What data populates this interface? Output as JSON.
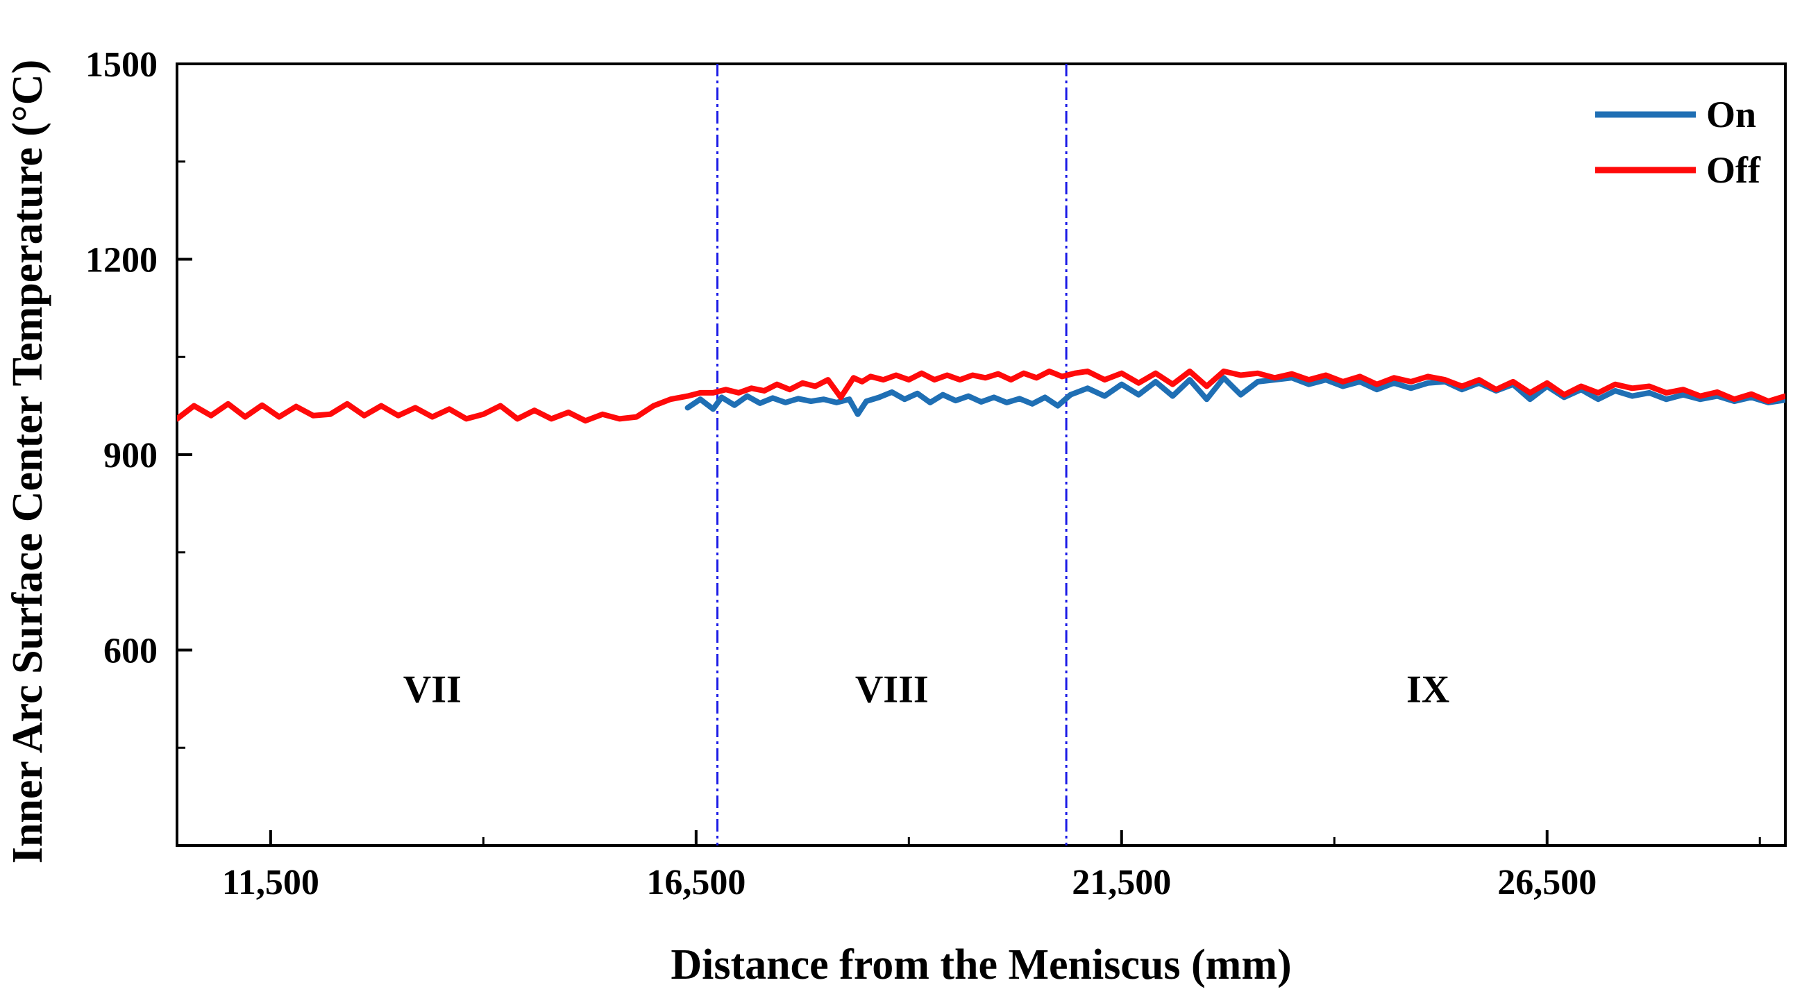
{
  "chart_data": {
    "type": "line",
    "xlabel": "Distance from the Meniscus (mm)",
    "ylabel": "Inner Arc Surface Center Temperature (°C)",
    "xlim": [
      10400,
      29300
    ],
    "ylim": [
      300,
      1500
    ],
    "x_ticks": [
      11500,
      16500,
      21500,
      26500
    ],
    "x_tick_labels": [
      "11,500",
      "16,500",
      "21,500",
      "26,500"
    ],
    "x_minor_ticks": [
      14000,
      19000,
      24000,
      29000
    ],
    "y_ticks": [
      600,
      900,
      1200,
      1500
    ],
    "y_tick_labels": [
      "600",
      "900",
      "1200",
      "1500"
    ],
    "y_minor_ticks": [
      450,
      750,
      1050,
      1350
    ],
    "grid": false,
    "legend_position": "top-right",
    "zone_dividers": [
      16750,
      20850
    ],
    "zones": [
      {
        "label": "VII",
        "x": 13400
      },
      {
        "label": "VIII",
        "x": 18800
      },
      {
        "label": "IX",
        "x": 25100
      }
    ],
    "series": [
      {
        "name": "On",
        "color": "#1f6fb4",
        "x": [
          16400,
          16550,
          16700,
          16800,
          16950,
          17100,
          17250,
          17400,
          17550,
          17700,
          17850,
          18000,
          18150,
          18300,
          18400,
          18500,
          18650,
          18800,
          18950,
          19100,
          19250,
          19400,
          19550,
          19700,
          19850,
          20000,
          20150,
          20300,
          20450,
          20600,
          20750,
          20900,
          21100,
          21300,
          21500,
          21700,
          21900,
          22100,
          22300,
          22500,
          22700,
          22900,
          23100,
          23300,
          23500,
          23700,
          23900,
          24100,
          24300,
          24500,
          24700,
          24900,
          25100,
          25300,
          25500,
          25700,
          25900,
          26100,
          26300,
          26500,
          26700,
          26900,
          27100,
          27300,
          27500,
          27700,
          27900,
          28100,
          28300,
          28500,
          28700,
          28900,
          29100,
          29300
        ],
        "y": [
          972,
          985,
          970,
          988,
          976,
          990,
          979,
          987,
          980,
          986,
          982,
          985,
          980,
          985,
          962,
          982,
          988,
          996,
          985,
          994,
          980,
          992,
          983,
          990,
          981,
          988,
          980,
          986,
          978,
          988,
          975,
          992,
          1002,
          990,
          1008,
          992,
          1012,
          990,
          1015,
          985,
          1018,
          992,
          1012,
          1015,
          1018,
          1008,
          1015,
          1005,
          1012,
          1000,
          1010,
          1002,
          1010,
          1012,
          1000,
          1010,
          998,
          1008,
          985,
          1005,
          988,
          1000,
          985,
          998,
          990,
          995,
          985,
          992,
          985,
          990,
          982,
          988,
          980,
          984
        ]
      },
      {
        "name": "Off",
        "color": "#ff0a0a",
        "x": [
          10400,
          10600,
          10800,
          11000,
          11200,
          11400,
          11600,
          11800,
          12000,
          12200,
          12400,
          12600,
          12800,
          13000,
          13200,
          13400,
          13600,
          13800,
          14000,
          14200,
          14400,
          14600,
          14800,
          15000,
          15200,
          15400,
          15600,
          15800,
          16000,
          16200,
          16400,
          16550,
          16700,
          16850,
          17000,
          17150,
          17300,
          17450,
          17600,
          17750,
          17900,
          18050,
          18200,
          18350,
          18450,
          18550,
          18700,
          18850,
          19000,
          19150,
          19300,
          19450,
          19600,
          19750,
          19900,
          20050,
          20200,
          20350,
          20500,
          20650,
          20800,
          20950,
          21100,
          21300,
          21500,
          21700,
          21900,
          22100,
          22300,
          22500,
          22700,
          22900,
          23100,
          23300,
          23500,
          23700,
          23900,
          24100,
          24300,
          24500,
          24700,
          24900,
          25100,
          25300,
          25500,
          25700,
          25900,
          26100,
          26300,
          26500,
          26700,
          26900,
          27100,
          27300,
          27500,
          27700,
          27900,
          28100,
          28300,
          28500,
          28700,
          28900,
          29100,
          29300
        ],
        "y": [
          955,
          975,
          960,
          978,
          958,
          976,
          958,
          974,
          960,
          962,
          978,
          960,
          975,
          960,
          972,
          958,
          970,
          955,
          962,
          975,
          955,
          968,
          955,
          965,
          952,
          962,
          955,
          958,
          975,
          985,
          990,
          995,
          995,
          1000,
          995,
          1002,
          998,
          1008,
          1000,
          1010,
          1005,
          1015,
          988,
          1018,
          1012,
          1020,
          1015,
          1022,
          1015,
          1025,
          1015,
          1022,
          1015,
          1022,
          1018,
          1024,
          1015,
          1025,
          1018,
          1028,
          1020,
          1025,
          1028,
          1015,
          1025,
          1010,
          1025,
          1008,
          1028,
          1005,
          1028,
          1022,
          1025,
          1018,
          1024,
          1015,
          1022,
          1012,
          1020,
          1008,
          1018,
          1012,
          1020,
          1015,
          1005,
          1015,
          1000,
          1012,
          995,
          1010,
          992,
          1005,
          995,
          1008,
          1002,
          1005,
          995,
          1000,
          990,
          996,
          985,
          993,
          982,
          990
        ]
      }
    ]
  }
}
